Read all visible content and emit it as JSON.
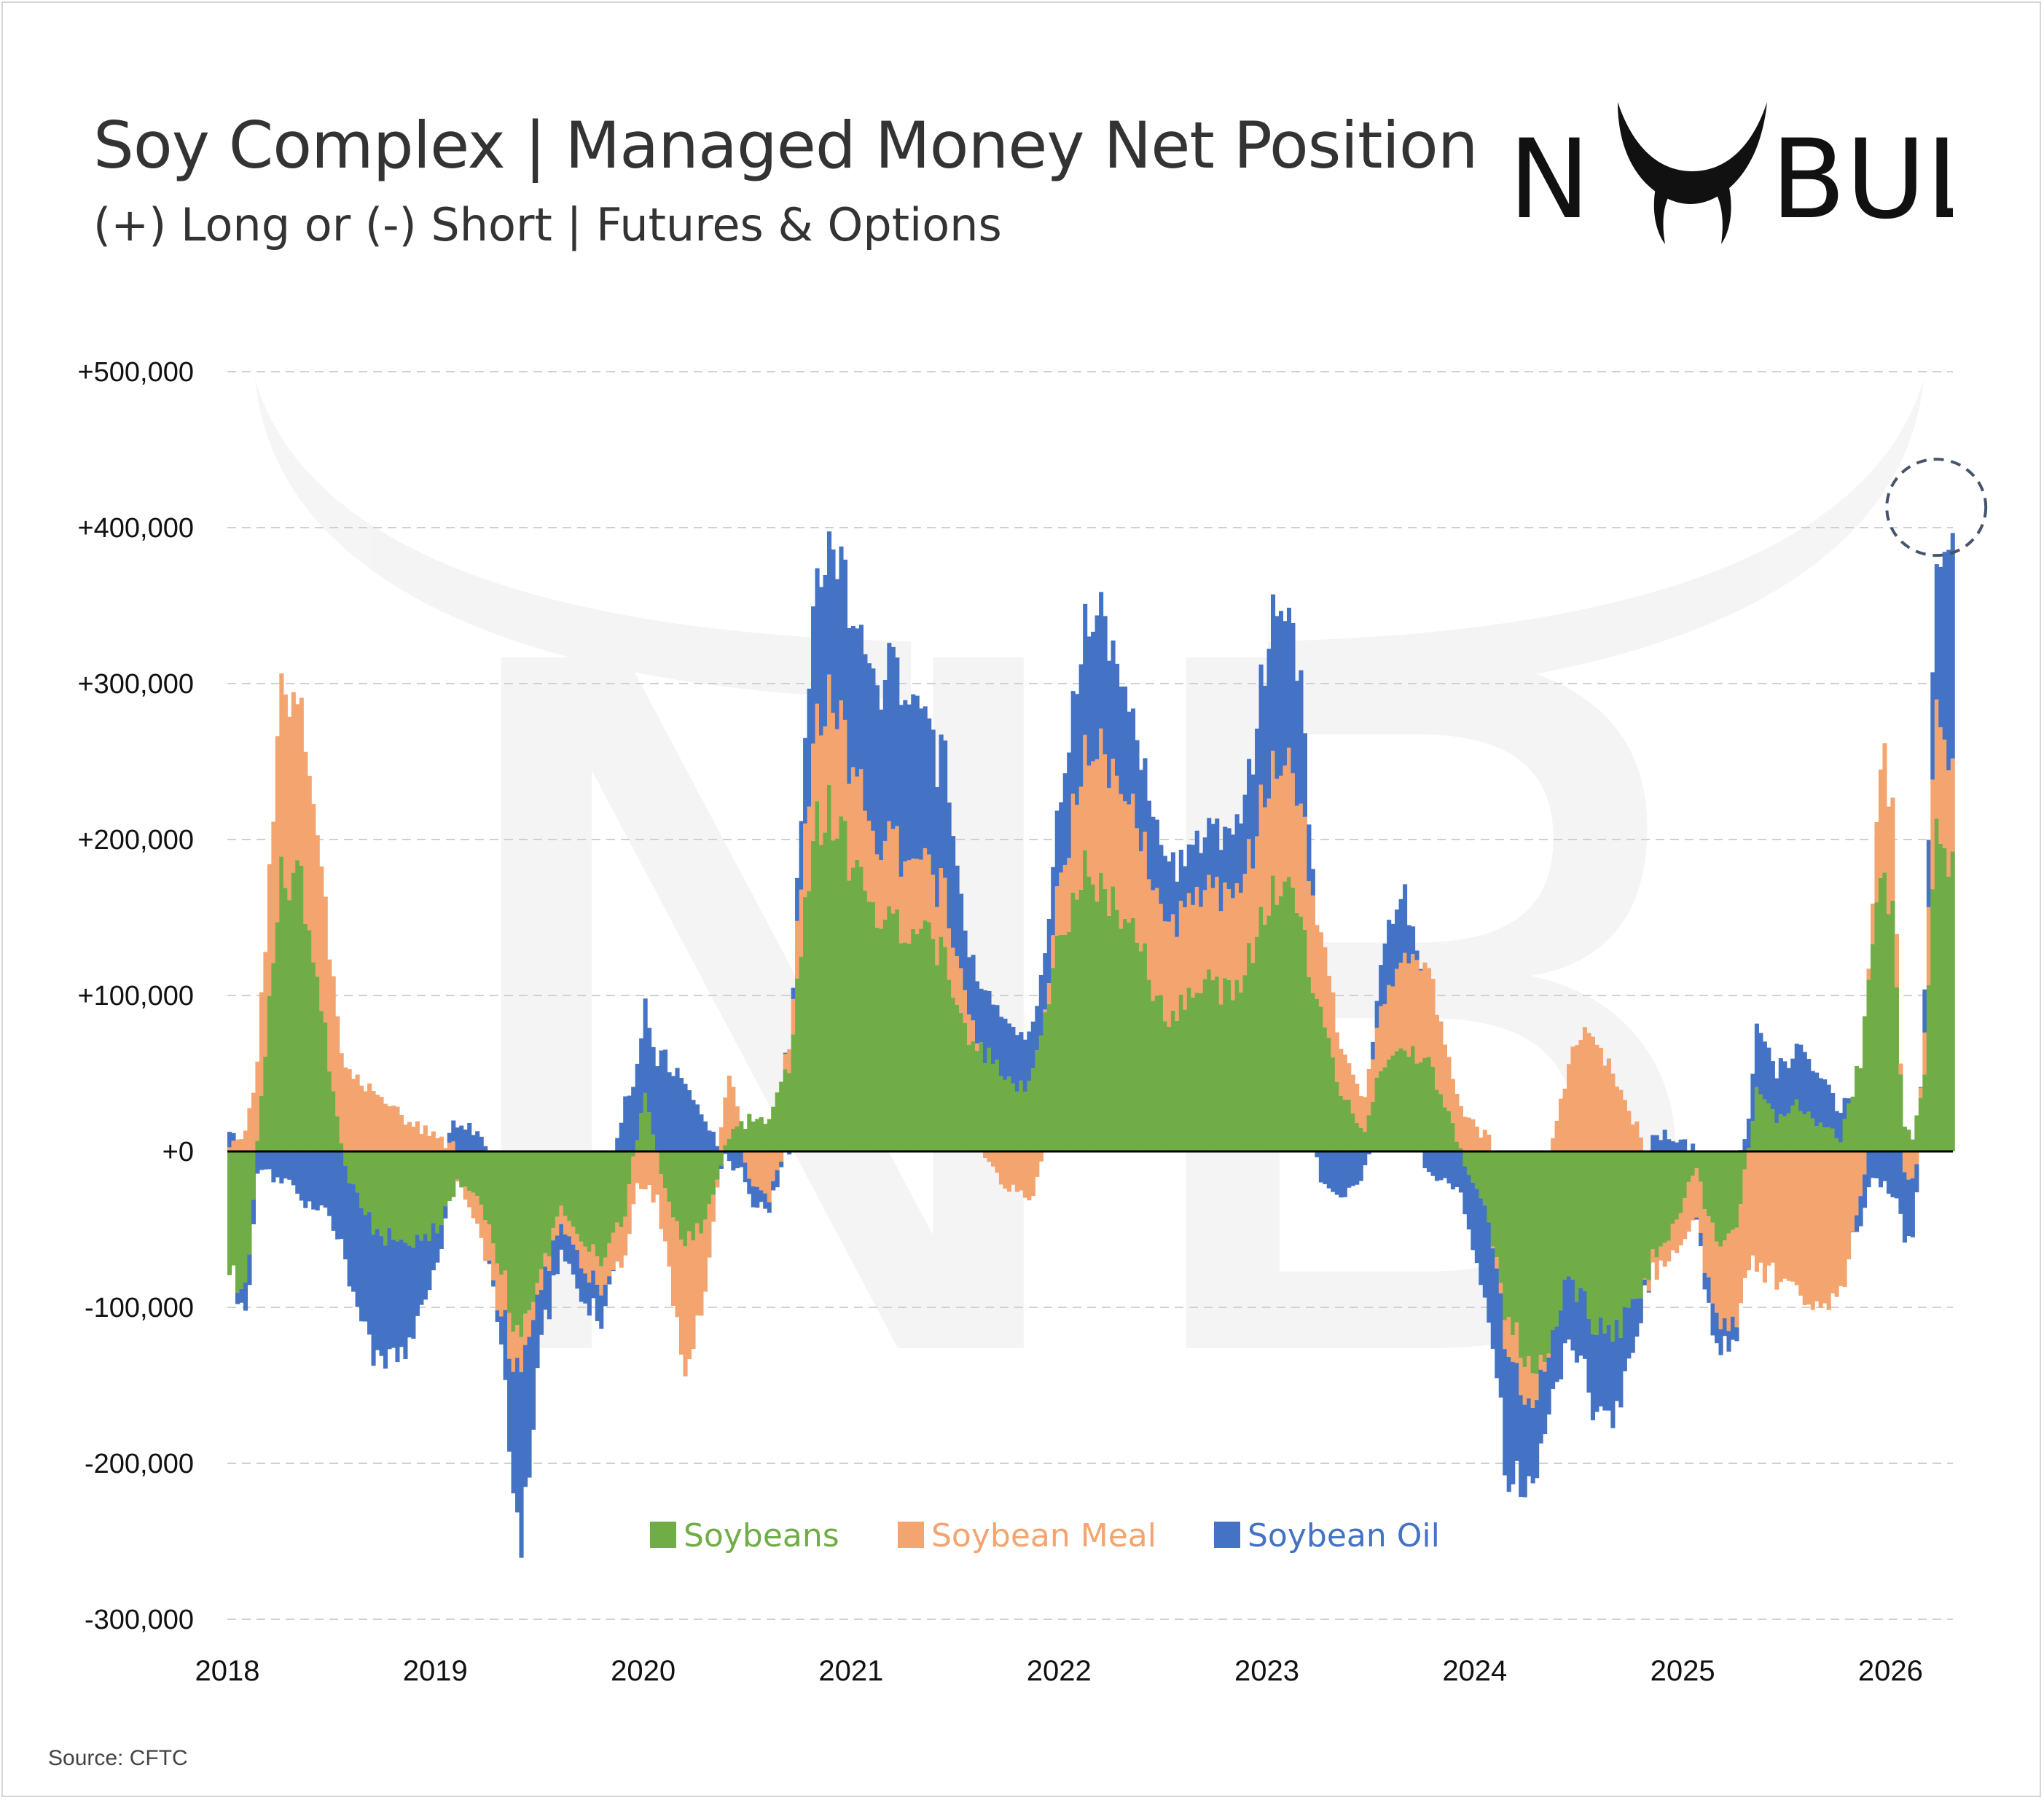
{
  "header": {
    "title": "Soy Complex | Managed Money Net Position",
    "subtitle": "(+) Long or (-) Short | Futures & Options"
  },
  "logo": {
    "text": "NO BULL",
    "icon": "bull-horns-logo-icon"
  },
  "footer": {
    "source": "Source: CFTC"
  },
  "colors": {
    "soybeans": "#70ad47",
    "soybean_meal": "#f4a46e",
    "soybean_oil": "#4472c4",
    "grid": "#d0d0d0",
    "zero_line": "#000000",
    "highlight_circle": "#44546a"
  },
  "chart_data": {
    "type": "bar",
    "stacked": true,
    "title": "Soy Complex | Managed Money Net Position",
    "subtitle": "(+) Long or (-) Short | Futures & Options",
    "x_range": [
      2018.0,
      2026.3
    ],
    "ylim": [
      -300000,
      500000
    ],
    "y_ticks": [
      {
        "value": 500000,
        "label": "+500,000"
      },
      {
        "value": 400000,
        "label": "+400,000"
      },
      {
        "value": 300000,
        "label": "+300,000"
      },
      {
        "value": 200000,
        "label": "+200,000"
      },
      {
        "value": 100000,
        "label": "+100,000"
      },
      {
        "value": 0,
        "label": "+0"
      },
      {
        "value": -100000,
        "label": "-100,000"
      },
      {
        "value": -200000,
        "label": "-200,000"
      },
      {
        "value": -300000,
        "label": "-300,000"
      }
    ],
    "x_ticks": [
      {
        "value": 2018,
        "label": "2018"
      },
      {
        "value": 2019,
        "label": "2019"
      },
      {
        "value": 2020,
        "label": "2020"
      },
      {
        "value": 2021,
        "label": "2021"
      },
      {
        "value": 2022,
        "label": "2022"
      },
      {
        "value": 2023,
        "label": "2023"
      },
      {
        "value": 2024,
        "label": "2024"
      },
      {
        "value": 2025,
        "label": "2025"
      },
      {
        "value": 2026,
        "label": "2026"
      }
    ],
    "grid": true,
    "legend_position": "bottom-center",
    "annotation": "dashed circle highlighting the early-2026 peak",
    "series": [
      {
        "name": "Soybeans",
        "color": "#70ad47",
        "points": [
          [
            2018.0,
            -80000
          ],
          [
            2018.08,
            -90000
          ],
          [
            2018.15,
            30000
          ],
          [
            2018.25,
            180000
          ],
          [
            2018.35,
            175000
          ],
          [
            2018.45,
            90000
          ],
          [
            2018.55,
            -10000
          ],
          [
            2018.7,
            -50000
          ],
          [
            2018.85,
            -60000
          ],
          [
            2019.0,
            -50000
          ],
          [
            2019.1,
            -20000
          ],
          [
            2019.2,
            -30000
          ],
          [
            2019.3,
            -70000
          ],
          [
            2019.4,
            -130000
          ],
          [
            2019.5,
            -80000
          ],
          [
            2019.6,
            -30000
          ],
          [
            2019.7,
            -60000
          ],
          [
            2019.8,
            -70000
          ],
          [
            2019.9,
            -40000
          ],
          [
            2020.0,
            40000
          ],
          [
            2020.1,
            -30000
          ],
          [
            2020.2,
            -60000
          ],
          [
            2020.3,
            -40000
          ],
          [
            2020.4,
            10000
          ],
          [
            2020.5,
            20000
          ],
          [
            2020.6,
            20000
          ],
          [
            2020.7,
            60000
          ],
          [
            2020.8,
            200000
          ],
          [
            2020.9,
            220000
          ],
          [
            2021.0,
            180000
          ],
          [
            2021.1,
            160000
          ],
          [
            2021.2,
            150000
          ],
          [
            2021.35,
            140000
          ],
          [
            2021.45,
            120000
          ],
          [
            2021.55,
            80000
          ],
          [
            2021.7,
            50000
          ],
          [
            2021.85,
            40000
          ],
          [
            2022.0,
            140000
          ],
          [
            2022.1,
            175000
          ],
          [
            2022.2,
            170000
          ],
          [
            2022.3,
            150000
          ],
          [
            2022.4,
            130000
          ],
          [
            2022.5,
            80000
          ],
          [
            2022.6,
            100000
          ],
          [
            2022.7,
            110000
          ],
          [
            2022.85,
            100000
          ],
          [
            2022.95,
            140000
          ],
          [
            2023.05,
            180000
          ],
          [
            2023.15,
            150000
          ],
          [
            2023.25,
            90000
          ],
          [
            2023.35,
            40000
          ],
          [
            2023.45,
            10000
          ],
          [
            2023.55,
            60000
          ],
          [
            2023.65,
            70000
          ],
          [
            2023.75,
            60000
          ],
          [
            2023.85,
            30000
          ],
          [
            2023.95,
            -10000
          ],
          [
            2024.05,
            -40000
          ],
          [
            2024.15,
            -110000
          ],
          [
            2024.25,
            -140000
          ],
          [
            2024.35,
            -130000
          ],
          [
            2024.45,
            -80000
          ],
          [
            2024.55,
            -110000
          ],
          [
            2024.65,
            -120000
          ],
          [
            2024.75,
            -100000
          ],
          [
            2024.85,
            -70000
          ],
          [
            2024.95,
            -50000
          ],
          [
            2025.05,
            -10000
          ],
          [
            2025.15,
            -60000
          ],
          [
            2025.25,
            -50000
          ],
          [
            2025.35,
            40000
          ],
          [
            2025.45,
            20000
          ],
          [
            2025.55,
            30000
          ],
          [
            2025.65,
            20000
          ],
          [
            2025.75,
            10000
          ],
          [
            2025.85,
            60000
          ],
          [
            2025.95,
            190000
          ],
          [
            2026.0,
            150000
          ],
          [
            2026.05,
            20000
          ],
          [
            2026.1,
            10000
          ],
          [
            2026.15,
            40000
          ],
          [
            2026.2,
            200000
          ],
          [
            2026.28,
            190000
          ]
        ]
      },
      {
        "name": "Soybean Meal",
        "color": "#f4a46e",
        "points": [
          [
            2018.0,
            5000
          ],
          [
            2018.08,
            15000
          ],
          [
            2018.15,
            60000
          ],
          [
            2018.25,
            120000
          ],
          [
            2018.35,
            110000
          ],
          [
            2018.45,
            90000
          ],
          [
            2018.55,
            50000
          ],
          [
            2018.7,
            40000
          ],
          [
            2018.85,
            20000
          ],
          [
            2019.0,
            10000
          ],
          [
            2019.1,
            0
          ],
          [
            2019.2,
            -20000
          ],
          [
            2019.3,
            -30000
          ],
          [
            2019.4,
            -20000
          ],
          [
            2019.5,
            -10000
          ],
          [
            2019.6,
            -10000
          ],
          [
            2019.7,
            -15000
          ],
          [
            2019.8,
            -20000
          ],
          [
            2019.9,
            -30000
          ],
          [
            2020.0,
            -20000
          ],
          [
            2020.1,
            -40000
          ],
          [
            2020.2,
            -80000
          ],
          [
            2020.3,
            -40000
          ],
          [
            2020.4,
            40000
          ],
          [
            2020.5,
            -20000
          ],
          [
            2020.6,
            -30000
          ],
          [
            2020.7,
            20000
          ],
          [
            2020.8,
            60000
          ],
          [
            2020.9,
            80000
          ],
          [
            2021.0,
            60000
          ],
          [
            2021.1,
            50000
          ],
          [
            2021.2,
            50000
          ],
          [
            2021.35,
            45000
          ],
          [
            2021.45,
            40000
          ],
          [
            2021.55,
            20000
          ],
          [
            2021.7,
            -20000
          ],
          [
            2021.85,
            -30000
          ],
          [
            2022.0,
            40000
          ],
          [
            2022.1,
            70000
          ],
          [
            2022.2,
            90000
          ],
          [
            2022.3,
            80000
          ],
          [
            2022.4,
            70000
          ],
          [
            2022.5,
            60000
          ],
          [
            2022.6,
            60000
          ],
          [
            2022.7,
            60000
          ],
          [
            2022.85,
            60000
          ],
          [
            2022.95,
            70000
          ],
          [
            2023.05,
            80000
          ],
          [
            2023.15,
            70000
          ],
          [
            2023.25,
            50000
          ],
          [
            2023.35,
            30000
          ],
          [
            2023.45,
            20000
          ],
          [
            2023.55,
            40000
          ],
          [
            2023.65,
            60000
          ],
          [
            2023.75,
            60000
          ],
          [
            2023.85,
            40000
          ],
          [
            2023.95,
            20000
          ],
          [
            2024.05,
            10000
          ],
          [
            2024.15,
            -20000
          ],
          [
            2024.25,
            -30000
          ],
          [
            2024.35,
            0
          ],
          [
            2024.45,
            60000
          ],
          [
            2024.55,
            80000
          ],
          [
            2024.65,
            50000
          ],
          [
            2024.75,
            20000
          ],
          [
            2024.85,
            -10000
          ],
          [
            2024.95,
            -20000
          ],
          [
            2025.05,
            -30000
          ],
          [
            2025.15,
            -50000
          ],
          [
            2025.25,
            -60000
          ],
          [
            2025.35,
            -80000
          ],
          [
            2025.45,
            -80000
          ],
          [
            2025.55,
            -90000
          ],
          [
            2025.65,
            -100000
          ],
          [
            2025.75,
            -90000
          ],
          [
            2025.85,
            -30000
          ],
          [
            2025.95,
            80000
          ],
          [
            2026.0,
            70000
          ],
          [
            2026.05,
            -10000
          ],
          [
            2026.1,
            -20000
          ],
          [
            2026.15,
            20000
          ],
          [
            2026.2,
            80000
          ],
          [
            2026.28,
            60000
          ]
        ]
      },
      {
        "name": "Soybean Oil",
        "color": "#4472c4",
        "points": [
          [
            2018.0,
            10000
          ],
          [
            2018.08,
            -20000
          ],
          [
            2018.15,
            -10000
          ],
          [
            2018.25,
            -20000
          ],
          [
            2018.35,
            -30000
          ],
          [
            2018.45,
            -40000
          ],
          [
            2018.55,
            -60000
          ],
          [
            2018.7,
            -80000
          ],
          [
            2018.85,
            -70000
          ],
          [
            2019.0,
            -20000
          ],
          [
            2019.1,
            20000
          ],
          [
            2019.2,
            10000
          ],
          [
            2019.3,
            -10000
          ],
          [
            2019.4,
            -120000
          ],
          [
            2019.5,
            -30000
          ],
          [
            2019.6,
            -20000
          ],
          [
            2019.7,
            -20000
          ],
          [
            2019.8,
            -20000
          ],
          [
            2019.9,
            30000
          ],
          [
            2020.0,
            60000
          ],
          [
            2020.1,
            60000
          ],
          [
            2020.2,
            40000
          ],
          [
            2020.3,
            20000
          ],
          [
            2020.4,
            -10000
          ],
          [
            2020.5,
            -10000
          ],
          [
            2020.6,
            -10000
          ],
          [
            2020.7,
            0
          ],
          [
            2020.8,
            80000
          ],
          [
            2020.9,
            100000
          ],
          [
            2021.0,
            90000
          ],
          [
            2021.1,
            100000
          ],
          [
            2021.2,
            110000
          ],
          [
            2021.35,
            90000
          ],
          [
            2021.45,
            80000
          ],
          [
            2021.55,
            40000
          ],
          [
            2021.7,
            40000
          ],
          [
            2021.85,
            30000
          ],
          [
            2022.0,
            50000
          ],
          [
            2022.1,
            80000
          ],
          [
            2022.2,
            90000
          ],
          [
            2022.3,
            70000
          ],
          [
            2022.4,
            50000
          ],
          [
            2022.5,
            40000
          ],
          [
            2022.6,
            30000
          ],
          [
            2022.7,
            40000
          ],
          [
            2022.85,
            40000
          ],
          [
            2022.95,
            70000
          ],
          [
            2023.05,
            110000
          ],
          [
            2023.15,
            80000
          ],
          [
            2023.25,
            -20000
          ],
          [
            2023.35,
            -30000
          ],
          [
            2023.45,
            -20000
          ],
          [
            2023.55,
            40000
          ],
          [
            2023.65,
            40000
          ],
          [
            2023.75,
            -10000
          ],
          [
            2023.85,
            -20000
          ],
          [
            2023.95,
            -30000
          ],
          [
            2024.05,
            -60000
          ],
          [
            2024.15,
            -80000
          ],
          [
            2024.25,
            -50000
          ],
          [
            2024.35,
            -40000
          ],
          [
            2024.45,
            -40000
          ],
          [
            2024.55,
            -50000
          ],
          [
            2024.65,
            -60000
          ],
          [
            2024.75,
            -30000
          ],
          [
            2024.85,
            10000
          ],
          [
            2024.95,
            10000
          ],
          [
            2025.05,
            0
          ],
          [
            2025.15,
            -20000
          ],
          [
            2025.25,
            -10000
          ],
          [
            2025.35,
            40000
          ],
          [
            2025.45,
            30000
          ],
          [
            2025.55,
            40000
          ],
          [
            2025.65,
            30000
          ],
          [
            2025.75,
            20000
          ],
          [
            2025.85,
            -20000
          ],
          [
            2025.95,
            -20000
          ],
          [
            2026.0,
            -30000
          ],
          [
            2026.05,
            -40000
          ],
          [
            2026.1,
            -40000
          ],
          [
            2026.15,
            20000
          ],
          [
            2026.2,
            80000
          ],
          [
            2026.28,
            150000
          ]
        ]
      }
    ]
  }
}
